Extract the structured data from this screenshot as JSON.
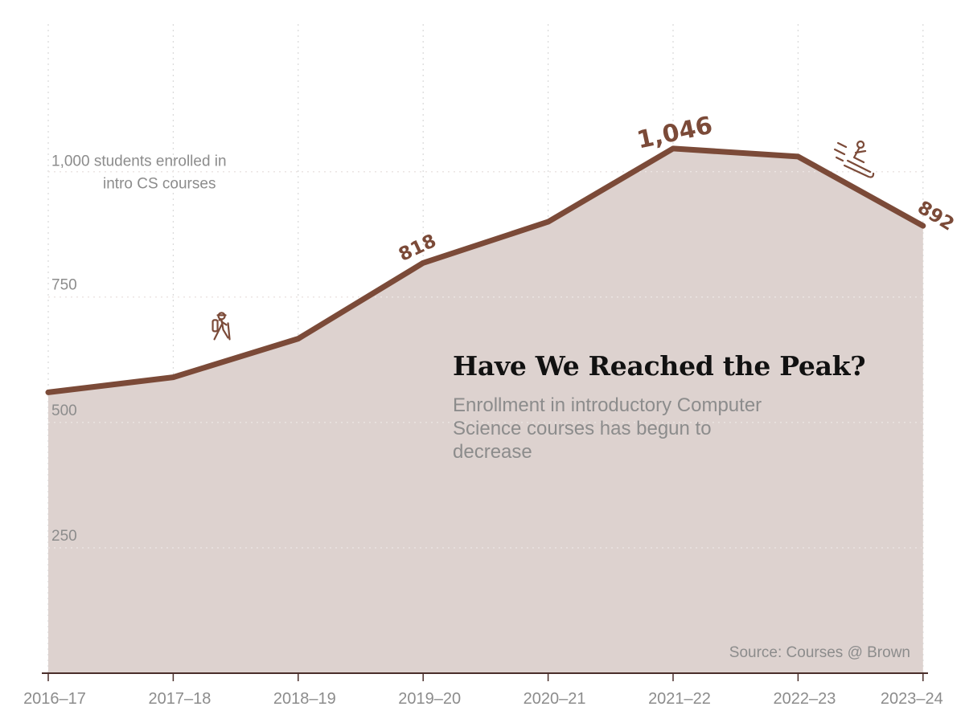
{
  "chart_data": {
    "type": "area",
    "title": "Have We Reached the Peak?",
    "subtitle": "Enrollment in introductory Computer Science courses has begun to decrease",
    "source": "Source: Courses @ Brown",
    "categories": [
      "2016–17",
      "2017–18",
      "2018–19",
      "2019–20",
      "2020–21",
      "2021–22",
      "2022–23",
      "2023–24"
    ],
    "series": [
      {
        "name": "",
        "values": [
          560,
          590,
          667,
          818,
          900,
          1046,
          1030,
          892
        ]
      }
    ],
    "data_labels": [
      {
        "index": 3,
        "text": "818"
      },
      {
        "index": 5,
        "text": "1,046"
      },
      {
        "index": 7,
        "text": "892"
      }
    ],
    "y_ticks": [
      {
        "value": 250,
        "label": "250"
      },
      {
        "value": 500,
        "label": "500"
      },
      {
        "value": 750,
        "label": "750"
      },
      {
        "value": 1000,
        "label": "1,000 students enrolled in intro CS courses"
      }
    ],
    "ylim": [
      0,
      1150
    ],
    "grid": true,
    "line_color": "#7b4a38",
    "fill_color": "#ddd2cf",
    "icons": [
      {
        "name": "hiker-icon",
        "at_index": 1.4
      },
      {
        "name": "sledder-icon",
        "at_index": 6.5
      }
    ]
  }
}
